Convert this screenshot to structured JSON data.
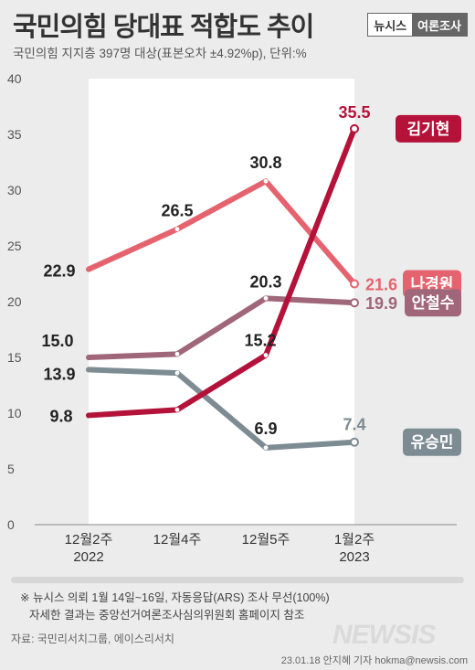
{
  "title": "국민의힘 당대표 적합도 추이",
  "brand": {
    "primary": "뉴시스",
    "secondary": "여론조사"
  },
  "subtitle": "국민의힘 지지층 397명 대상(표본오차 ±4.92%p), 단위:%",
  "chart_data": {
    "type": "line",
    "categories": [
      "12월2주\n2022",
      "12월4주",
      "12월5주",
      "1월2주\n2023"
    ],
    "ylim": [
      0,
      40
    ],
    "yticks": [
      0,
      5,
      10,
      15,
      20,
      25,
      30,
      35,
      40
    ],
    "grid": false,
    "series": [
      {
        "name": "김기현",
        "values": [
          9.8,
          10.3,
          15.2,
          35.5
        ],
        "labels": [
          "9.8",
          "",
          "15.2",
          "35.5"
        ],
        "color": "#b5123a"
      },
      {
        "name": "나경원",
        "values": [
          22.9,
          26.5,
          30.8,
          21.6
        ],
        "labels": [
          "22.9",
          "26.5",
          "30.8",
          "21.6"
        ],
        "color": "#e5636e"
      },
      {
        "name": "안철수",
        "values": [
          15.0,
          15.3,
          20.3,
          19.9
        ],
        "labels": [
          "15.0",
          "",
          "20.3",
          "19.9"
        ],
        "color": "#a0667a"
      },
      {
        "name": "유승민",
        "values": [
          13.9,
          13.6,
          6.9,
          7.4
        ],
        "labels": [
          "13.9",
          "",
          "6.9",
          "7.4"
        ],
        "color": "#7d8b93"
      }
    ]
  },
  "notes": [
    "※ 뉴시스 의뢰 1월 14일~16일, 자동응답(ARS) 조사 무선(100%)",
    "자세한 결과는 중앙선거여론조사심의위원회 홈페이지 참조"
  ],
  "source": "자료: 국민리서치그룹, 에이스리서치",
  "logo": "NEWSIS",
  "credit": "23.01.18 안지혜 기자 hokma@newsis.com"
}
